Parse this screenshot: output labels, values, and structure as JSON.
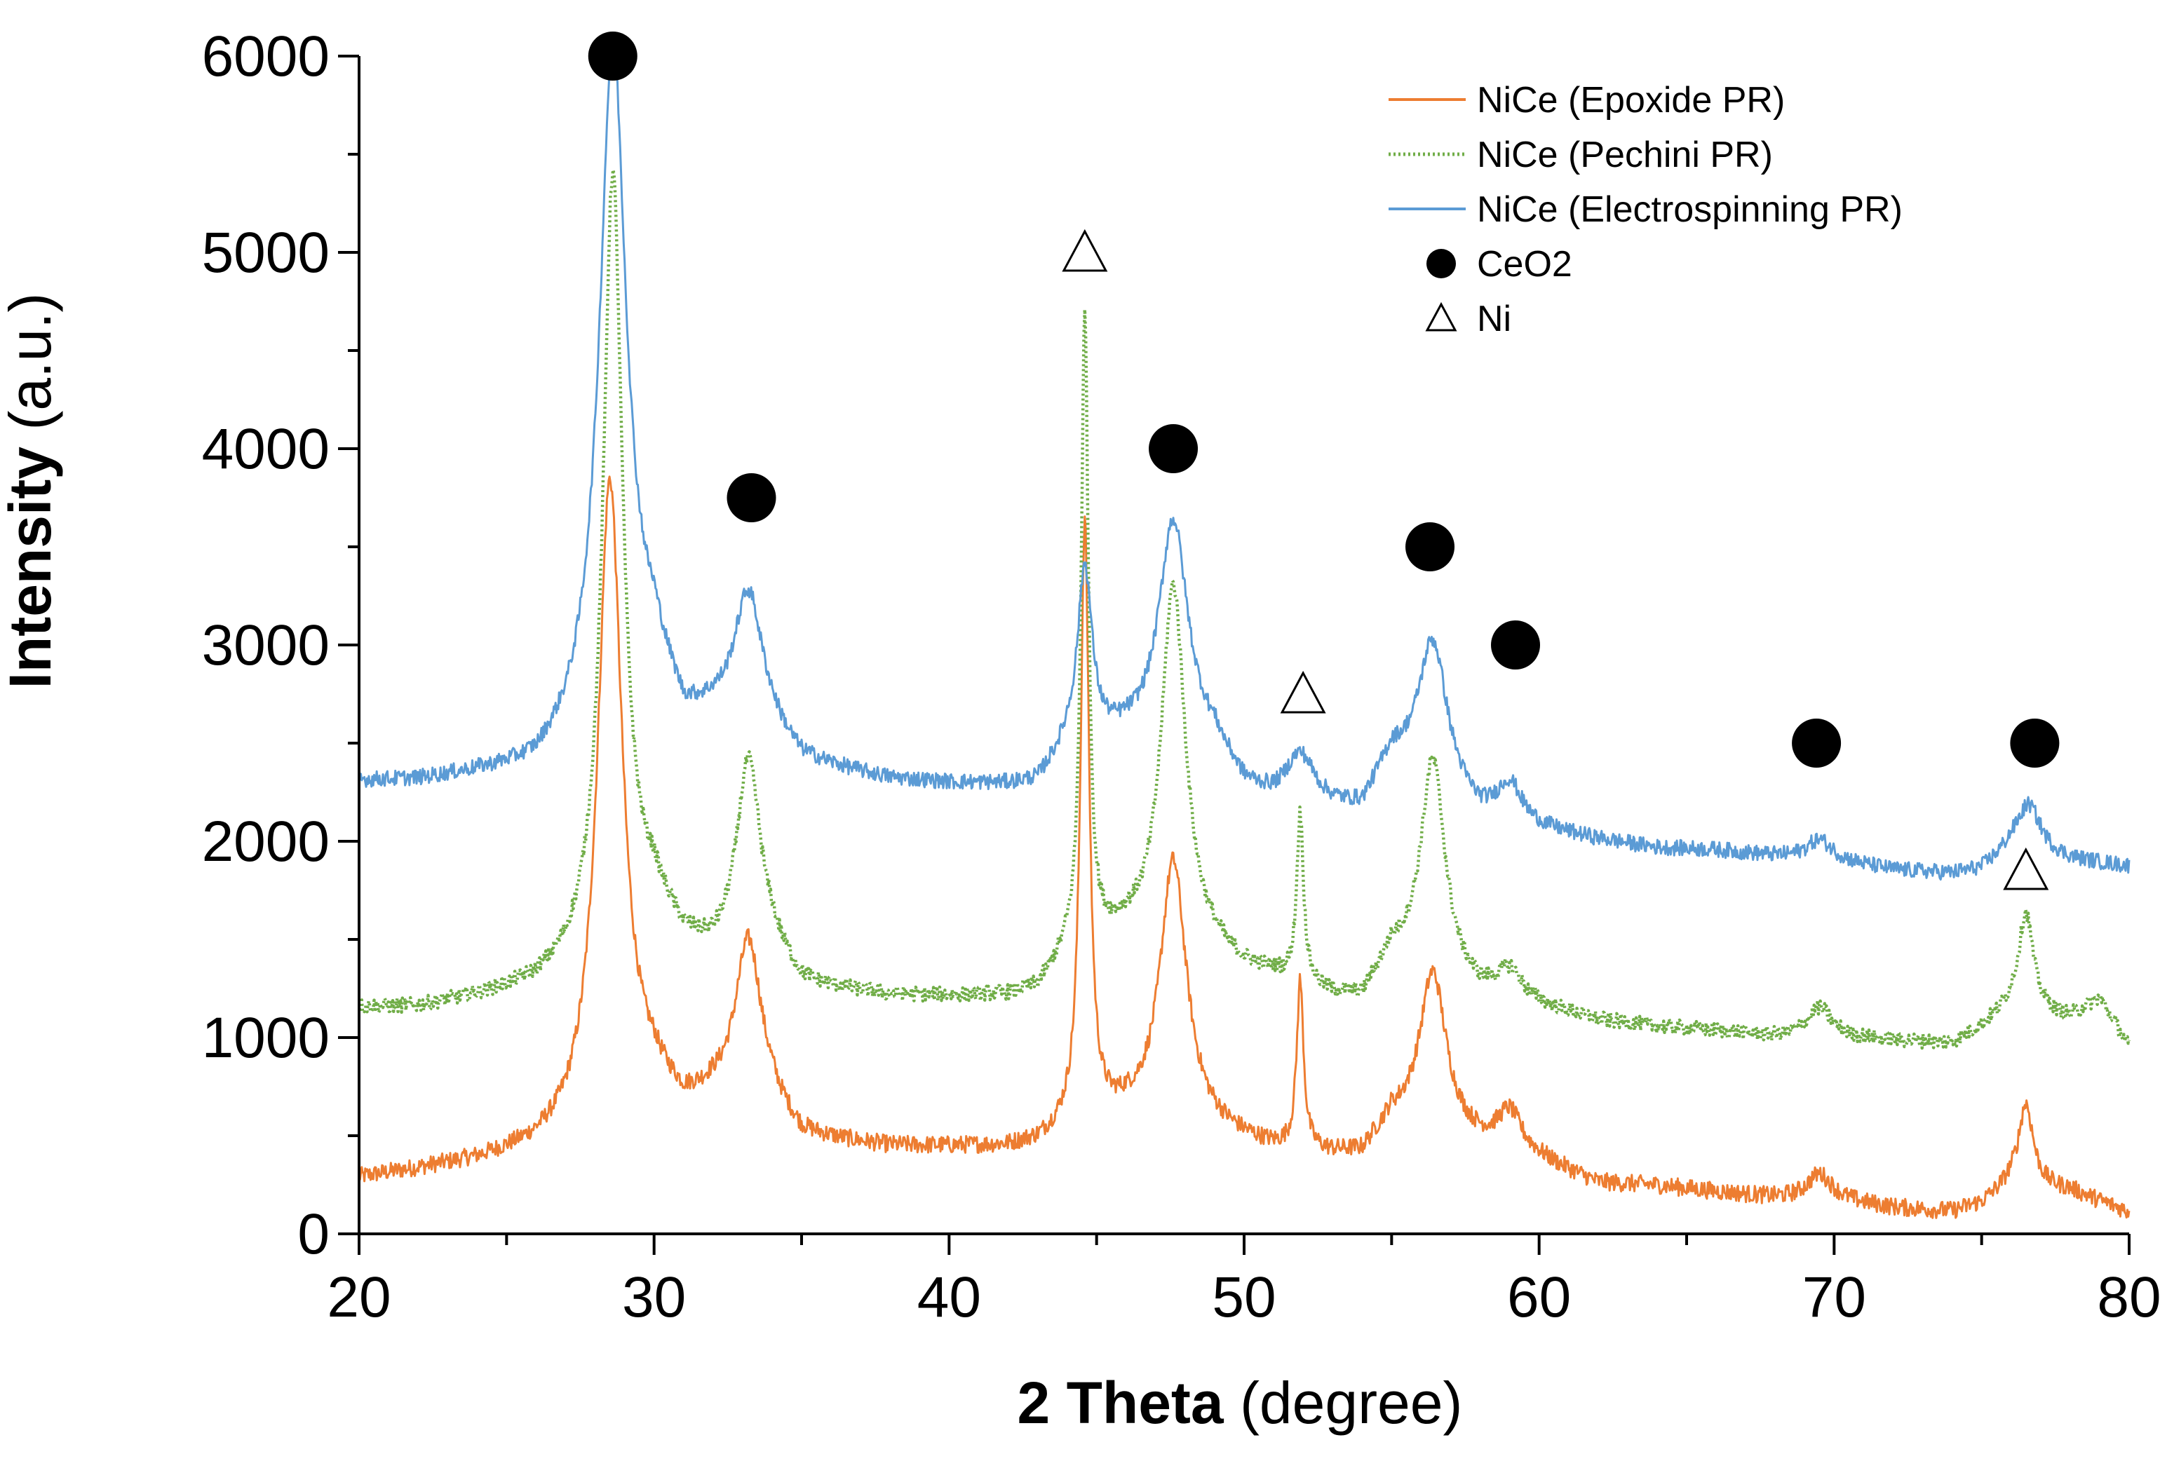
{
  "chart_data": {
    "type": "line",
    "title": "",
    "xlabel": {
      "bold": "2 Theta",
      "rest": " (degree)"
    },
    "ylabel": {
      "bold": "Intensity",
      "rest": " (a.u.)"
    },
    "xlim": [
      20,
      80
    ],
    "ylim": [
      0,
      6000
    ],
    "x_ticks": [
      20,
      30,
      40,
      50,
      60,
      70,
      80
    ],
    "y_ticks": [
      0,
      1000,
      2000,
      3000,
      4000,
      5000,
      6000
    ],
    "grid": false,
    "legend_position": "top-right",
    "series": [
      {
        "name": "NiCe (Epoxide PR)",
        "color": "#ED7D31",
        "style": "solid",
        "baseline": [
          [
            20,
            280
          ],
          [
            22,
            320
          ],
          [
            24,
            360
          ],
          [
            26,
            420
          ],
          [
            27,
            470
          ],
          [
            30,
            700
          ],
          [
            31,
            600
          ],
          [
            32,
            650
          ],
          [
            34,
            600
          ],
          [
            35,
            470
          ],
          [
            38,
            430
          ],
          [
            40,
            430
          ],
          [
            42,
            430
          ],
          [
            43,
            450
          ],
          [
            44,
            520
          ],
          [
            46,
            580
          ],
          [
            49,
            500
          ],
          [
            50,
            460
          ],
          [
            51,
            420
          ],
          [
            53,
            390
          ],
          [
            54,
            390
          ],
          [
            55,
            560
          ],
          [
            58,
            440
          ],
          [
            60,
            370
          ],
          [
            62,
            250
          ],
          [
            64,
            240
          ],
          [
            66,
            210
          ],
          [
            68,
            180
          ],
          [
            70,
            170
          ],
          [
            72,
            130
          ],
          [
            74,
            110
          ],
          [
            75,
            150
          ],
          [
            76,
            250
          ],
          [
            78,
            220
          ],
          [
            80,
            110
          ]
        ],
        "peaks": [
          [
            28.5,
            3250,
            0.5
          ],
          [
            33.2,
            850,
            0.55
          ],
          [
            44.6,
            3050,
            0.18
          ],
          [
            47.6,
            1350,
            0.55
          ],
          [
            51.9,
            850,
            0.14
          ],
          [
            56.4,
            820,
            0.55
          ],
          [
            59.0,
            200,
            0.5
          ],
          [
            69.5,
            130,
            0.5
          ],
          [
            76.5,
            420,
            0.3
          ]
        ],
        "noise": 45
      },
      {
        "name": "NiCe (Pechini PR)",
        "color": "#70AD47",
        "style": "dotted",
        "baseline": [
          [
            20,
            1150
          ],
          [
            22,
            1150
          ],
          [
            24,
            1200
          ],
          [
            26,
            1260
          ],
          [
            27,
            1330
          ],
          [
            30,
            1650
          ],
          [
            31,
            1450
          ],
          [
            32,
            1380
          ],
          [
            34,
            1400
          ],
          [
            35,
            1250
          ],
          [
            38,
            1200
          ],
          [
            40,
            1200
          ],
          [
            42,
            1200
          ],
          [
            43,
            1230
          ],
          [
            44,
            1400
          ],
          [
            46,
            1500
          ],
          [
            49,
            1400
          ],
          [
            50,
            1330
          ],
          [
            51,
            1300
          ],
          [
            53,
            1200
          ],
          [
            54,
            1180
          ],
          [
            55,
            1400
          ],
          [
            58,
            1200
          ],
          [
            60,
            1150
          ],
          [
            62,
            1080
          ],
          [
            64,
            1050
          ],
          [
            66,
            1030
          ],
          [
            68,
            1000
          ],
          [
            70,
            1000
          ],
          [
            72,
            980
          ],
          [
            74,
            970
          ],
          [
            75,
            1050
          ],
          [
            76,
            1150
          ],
          [
            78,
            1100
          ],
          [
            79,
            1200
          ],
          [
            80,
            950
          ]
        ],
        "peaks": [
          [
            28.6,
            3900,
            0.4
          ],
          [
            33.2,
            1000,
            0.5
          ],
          [
            44.6,
            3200,
            0.15
          ],
          [
            47.6,
            1850,
            0.5
          ],
          [
            51.9,
            850,
            0.14
          ],
          [
            56.4,
            1100,
            0.5
          ],
          [
            59.0,
            150,
            0.5
          ],
          [
            69.5,
            150,
            0.5
          ],
          [
            76.5,
            500,
            0.3
          ]
        ],
        "noise": 38
      },
      {
        "name": "NiCe (Electrospinning PR)",
        "color": "#5B9BD5",
        "style": "solid",
        "baseline": [
          [
            20,
            2300
          ],
          [
            22,
            2300
          ],
          [
            24,
            2330
          ],
          [
            26,
            2350
          ],
          [
            27,
            2450
          ],
          [
            30,
            2850
          ],
          [
            31,
            2550
          ],
          [
            32,
            2580
          ],
          [
            34,
            2500
          ],
          [
            35,
            2380
          ],
          [
            38,
            2300
          ],
          [
            40,
            2280
          ],
          [
            42,
            2270
          ],
          [
            43,
            2280
          ],
          [
            44,
            2450
          ],
          [
            46,
            2500
          ],
          [
            49,
            2450
          ],
          [
            50,
            2250
          ],
          [
            51,
            2180
          ],
          [
            53,
            2150
          ],
          [
            54,
            2150
          ],
          [
            55,
            2400
          ],
          [
            58,
            2100
          ],
          [
            60,
            2050
          ],
          [
            62,
            2000
          ],
          [
            64,
            1960
          ],
          [
            66,
            1950
          ],
          [
            68,
            1920
          ],
          [
            70,
            1900
          ],
          [
            72,
            1850
          ],
          [
            74,
            1830
          ],
          [
            75,
            1850
          ],
          [
            76,
            1950
          ],
          [
            78,
            1900
          ],
          [
            80,
            1870
          ]
        ],
        "peaks": [
          [
            28.6,
            3400,
            0.55
          ],
          [
            33.2,
            700,
            0.6
          ],
          [
            44.6,
            900,
            0.3
          ],
          [
            47.6,
            1150,
            0.6
          ],
          [
            51.9,
            250,
            0.6
          ],
          [
            56.4,
            750,
            0.6
          ],
          [
            59.0,
            200,
            0.5
          ],
          [
            69.5,
            100,
            0.5
          ],
          [
            76.6,
            250,
            0.5
          ]
        ],
        "noise": 40
      }
    ],
    "markers": [
      {
        "name": "CeO2",
        "symbol": "filled-circle",
        "color": "#000000",
        "points": [
          [
            28.6,
            6000
          ],
          [
            33.3,
            3750
          ],
          [
            47.6,
            4000
          ],
          [
            56.3,
            3500
          ],
          [
            59.2,
            3000
          ],
          [
            69.4,
            2500
          ],
          [
            76.8,
            2500
          ]
        ]
      },
      {
        "name": "Ni",
        "symbol": "open-triangle",
        "color": "#000000",
        "points": [
          [
            44.6,
            5000
          ],
          [
            52.0,
            2750
          ],
          [
            76.5,
            1850
          ]
        ]
      }
    ]
  }
}
